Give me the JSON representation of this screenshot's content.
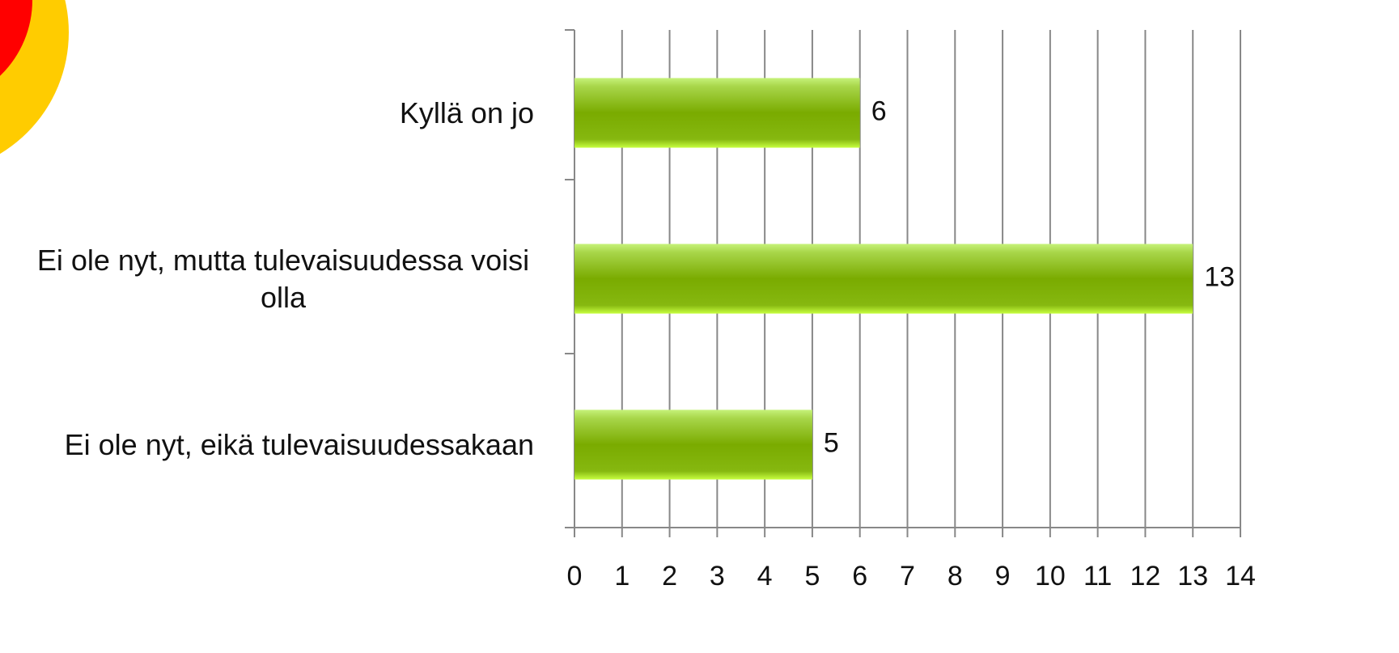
{
  "chart_data": {
    "type": "bar",
    "orientation": "horizontal",
    "categories": [
      "Kyllä on jo",
      "Ei ole nyt, mutta tulevaisuudessa voisi olla",
      "Ei ole nyt, eikä tulevaisuudessakaan"
    ],
    "values": [
      6,
      13,
      5
    ],
    "color": "#7aab00",
    "xlim": [
      0,
      14
    ],
    "xticks": [
      0,
      1,
      2,
      3,
      4,
      5,
      6,
      7,
      8,
      9,
      10,
      11,
      12,
      13,
      14
    ],
    "grid": true
  }
}
